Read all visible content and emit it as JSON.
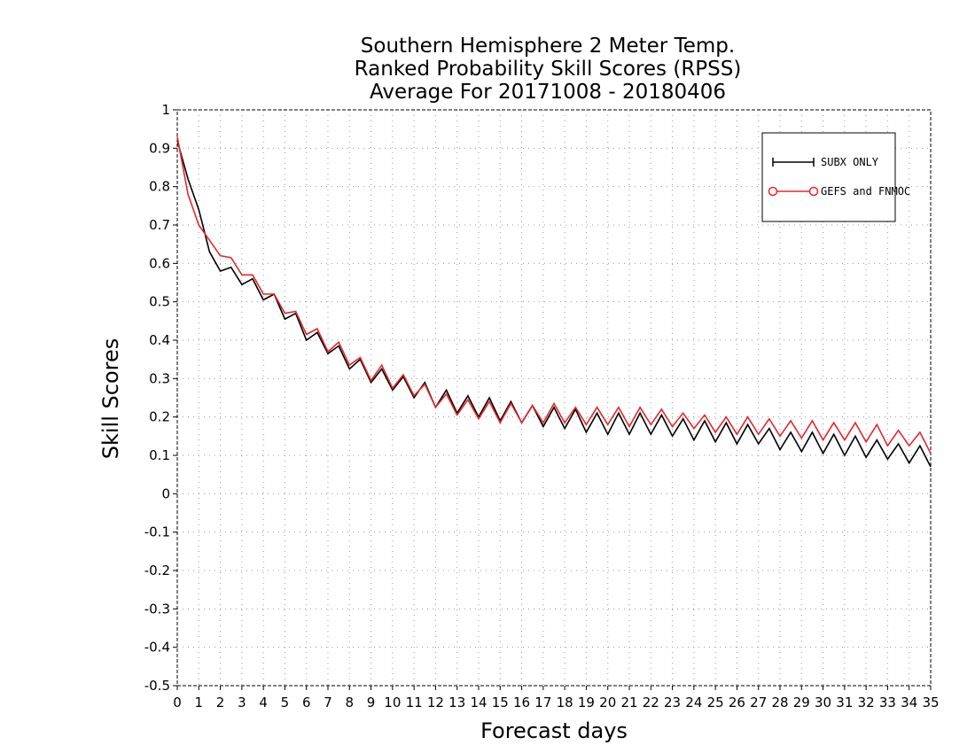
{
  "chart_data": {
    "type": "line",
    "title_lines": [
      "Southern Hemisphere 2 Meter Temp.",
      "Ranked Probability Skill Scores (RPSS)",
      "Average For 20171008 - 20180406"
    ],
    "xlabel": "Forecast days",
    "ylabel": "Skill Scores",
    "xlim": [
      0,
      35
    ],
    "ylim": [
      -0.5,
      1
    ],
    "x_ticks": [
      "0",
      "1",
      "2",
      "3",
      "4",
      "5",
      "6",
      "7",
      "8",
      "9",
      "10",
      "11",
      "12",
      "13",
      "14",
      "15",
      "16",
      "17",
      "18",
      "19",
      "20",
      "21",
      "22",
      "23",
      "24",
      "25",
      "26",
      "27",
      "28",
      "29",
      "30",
      "31",
      "32",
      "33",
      "34",
      "35"
    ],
    "y_ticks": [
      "-0.5",
      "-0.4",
      "-0.3",
      "-0.2",
      "-0.1",
      "0",
      "0.1",
      "0.2",
      "0.3",
      "0.4",
      "0.5",
      "0.6",
      "0.7",
      "0.8",
      "0.9",
      "1"
    ],
    "grid": true,
    "legend_position": "top-right",
    "x": [
      0,
      0.5,
      1,
      1.5,
      2,
      2.5,
      3,
      3.5,
      4,
      4.5,
      5,
      5.5,
      6,
      6.5,
      7,
      7.5,
      8,
      8.5,
      9,
      9.5,
      10,
      10.5,
      11,
      11.5,
      12,
      12.5,
      13,
      13.5,
      14,
      14.5,
      15,
      15.5,
      16,
      16.5,
      17,
      17.5,
      18,
      18.5,
      19,
      19.5,
      20,
      20.5,
      21,
      21.5,
      22,
      22.5,
      23,
      23.5,
      24,
      24.5,
      25,
      25.5,
      26,
      26.5,
      27,
      27.5,
      28,
      28.5,
      29,
      29.5,
      30,
      30.5,
      31,
      31.5,
      32,
      32.5,
      33,
      33.5,
      34,
      34.5,
      35
    ],
    "series": [
      {
        "name": "SUBX ONLY",
        "color": "#000000",
        "marker": "plus",
        "values": [
          0.92,
          0.82,
          0.74,
          0.63,
          0.58,
          0.59,
          0.545,
          0.56,
          0.505,
          0.52,
          0.455,
          0.47,
          0.4,
          0.42,
          0.365,
          0.385,
          0.325,
          0.35,
          0.29,
          0.325,
          0.27,
          0.305,
          0.25,
          0.29,
          0.225,
          0.27,
          0.21,
          0.255,
          0.2,
          0.25,
          0.19,
          0.24,
          0.185,
          0.23,
          0.175,
          0.225,
          0.17,
          0.22,
          0.16,
          0.21,
          0.155,
          0.21,
          0.155,
          0.21,
          0.155,
          0.205,
          0.15,
          0.195,
          0.14,
          0.19,
          0.135,
          0.185,
          0.13,
          0.18,
          0.13,
          0.17,
          0.115,
          0.16,
          0.11,
          0.16,
          0.105,
          0.155,
          0.1,
          0.15,
          0.095,
          0.14,
          0.09,
          0.13,
          0.08,
          0.125,
          0.07
        ]
      },
      {
        "name": "GEFS and FNMOC",
        "color": "#e8262b",
        "marker": "circle",
        "values": [
          0.93,
          0.78,
          0.7,
          0.66,
          0.62,
          0.615,
          0.57,
          0.57,
          0.52,
          0.52,
          0.47,
          0.475,
          0.415,
          0.43,
          0.37,
          0.395,
          0.335,
          0.355,
          0.295,
          0.335,
          0.275,
          0.31,
          0.255,
          0.285,
          0.225,
          0.26,
          0.205,
          0.245,
          0.195,
          0.24,
          0.185,
          0.235,
          0.185,
          0.23,
          0.185,
          0.235,
          0.185,
          0.225,
          0.18,
          0.225,
          0.18,
          0.225,
          0.175,
          0.225,
          0.18,
          0.22,
          0.175,
          0.21,
          0.17,
          0.205,
          0.16,
          0.2,
          0.155,
          0.2,
          0.155,
          0.195,
          0.15,
          0.19,
          0.145,
          0.19,
          0.14,
          0.185,
          0.14,
          0.185,
          0.135,
          0.18,
          0.125,
          0.165,
          0.125,
          0.16,
          0.105
        ]
      }
    ]
  }
}
